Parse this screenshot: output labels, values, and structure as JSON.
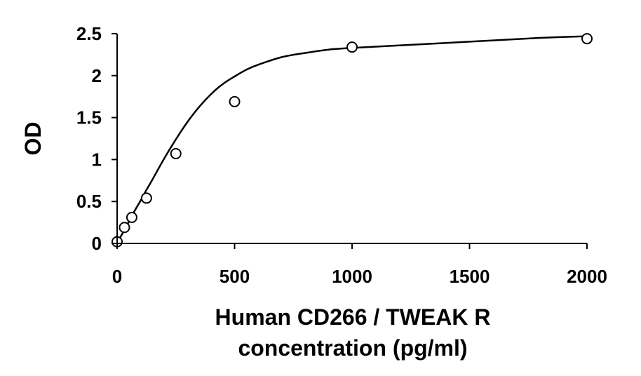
{
  "chart_data": {
    "type": "scatter",
    "title": "",
    "xlabel_lines": [
      "Human CD266 / TWEAK R",
      "concentration (pg/ml)"
    ],
    "ylabel": "OD",
    "xlim": [
      0,
      2000
    ],
    "ylim": [
      0,
      2.5
    ],
    "xticks": [
      0,
      500,
      1000,
      1500,
      2000
    ],
    "yticks": [
      0,
      0.5,
      1,
      1.5,
      2,
      2.5
    ],
    "xtick_labels": [
      "0",
      "500",
      "1000",
      "1500",
      "2000"
    ],
    "ytick_labels": [
      "0",
      "0.5",
      "1",
      "1.5",
      "2",
      "2.5"
    ],
    "grid": false,
    "legend": "none",
    "series": [
      {
        "marker": "open-circle",
        "x": [
          0,
          31.25,
          62.5,
          125,
          250,
          500,
          1000,
          2000
        ],
        "y": [
          0.02,
          0.19,
          0.31,
          0.54,
          1.07,
          1.69,
          2.34,
          2.44
        ]
      }
    ],
    "fit_curve": {
      "type": "4PL",
      "line_color": "#000000",
      "x": [
        0,
        25,
        50,
        75,
        100,
        125,
        150,
        200,
        250,
        300,
        350,
        400,
        450,
        500,
        550,
        600,
        700,
        800,
        900,
        1000,
        1200,
        1400,
        1600,
        1800,
        2000
      ],
      "y": [
        0.01,
        0.13,
        0.26,
        0.39,
        0.51,
        0.64,
        0.76,
        1.01,
        1.24,
        1.45,
        1.63,
        1.78,
        1.9,
        1.99,
        2.07,
        2.13,
        2.22,
        2.27,
        2.31,
        2.33,
        2.36,
        2.39,
        2.42,
        2.45,
        2.47
      ]
    }
  }
}
